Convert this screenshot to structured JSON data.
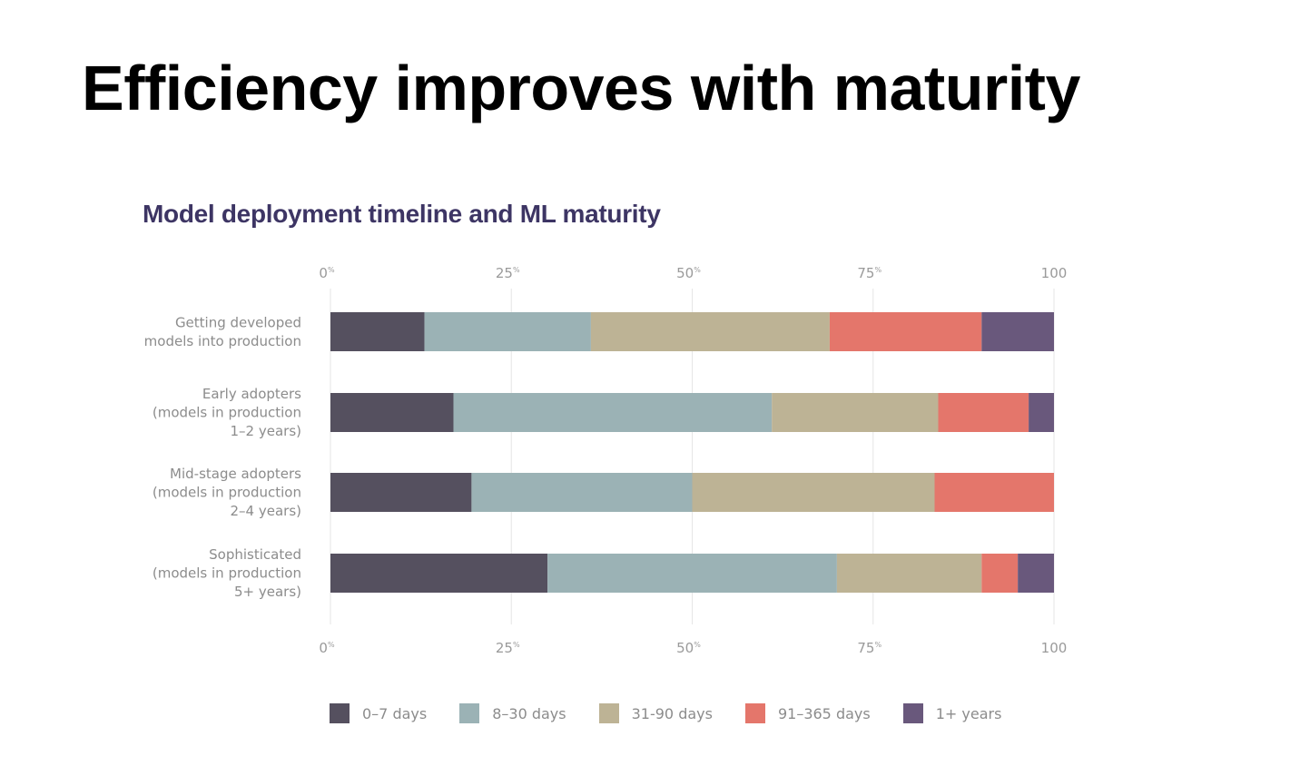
{
  "slide": {
    "title": "Efficiency improves with maturity"
  },
  "chart_data": {
    "type": "bar",
    "orientation": "horizontal",
    "stacked": true,
    "title": "Model deployment timeline and ML maturity",
    "xlim": [
      0,
      100
    ],
    "x_ticks": [
      {
        "value": 0,
        "label": "0",
        "suffix": "%"
      },
      {
        "value": 25,
        "label": "25",
        "suffix": "%"
      },
      {
        "value": 50,
        "label": "50",
        "suffix": "%"
      },
      {
        "value": 75,
        "label": "75",
        "suffix": "%"
      },
      {
        "value": 100,
        "label": "100",
        "suffix": ""
      }
    ],
    "grid": true,
    "legend_position": "bottom",
    "categories": [
      [
        "Getting developed",
        "models into production"
      ],
      [
        "Early adopters",
        "(models in production",
        "1–2 years)"
      ],
      [
        "Mid-stage adopters",
        "(models in production",
        "2–4 years)"
      ],
      [
        "Sophisticated",
        "(models in production",
        "5+ years)"
      ]
    ],
    "series": [
      {
        "name": "0–7 days",
        "color": "#55505f",
        "values": [
          13,
          17,
          19.5,
          30
        ]
      },
      {
        "name": "8–30 days",
        "color": "#9bb2b5",
        "values": [
          23,
          44,
          30.5,
          40
        ]
      },
      {
        "name": "31-90 days",
        "color": "#bdb395",
        "values": [
          33,
          23,
          33.5,
          20
        ]
      },
      {
        "name": "91–365 days",
        "color": "#e4766b",
        "values": [
          21,
          12.5,
          16.5,
          5
        ]
      },
      {
        "name": "1+ years",
        "color": "#69587c",
        "values": [
          10,
          3.5,
          0,
          5
        ]
      }
    ]
  }
}
